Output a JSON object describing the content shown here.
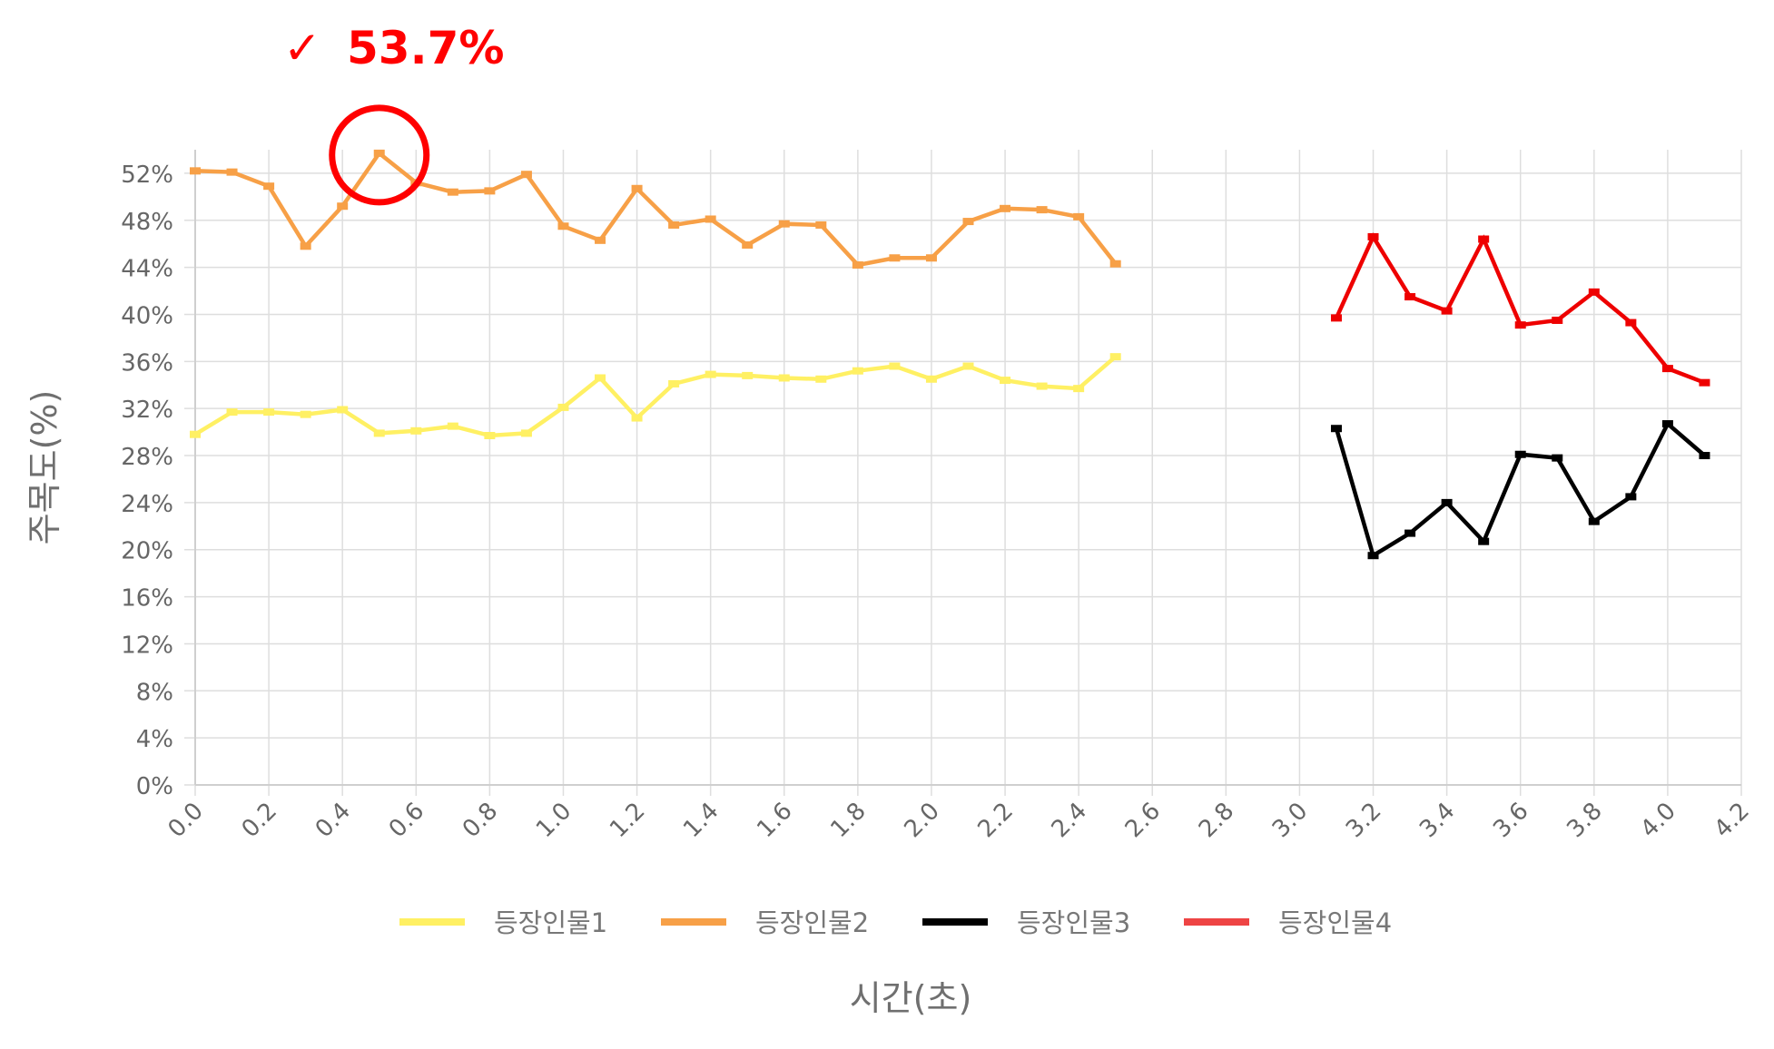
{
  "chart_data": {
    "type": "line",
    "xlabel": "시간(초)",
    "ylabel": "주목도(%)",
    "xlim": [
      0.0,
      4.2
    ],
    "ylim": [
      0,
      54
    ],
    "x_ticks": [
      "0.0",
      "0.2",
      "0.4",
      "0.6",
      "0.8",
      "1.0",
      "1.2",
      "1.4",
      "1.6",
      "1.8",
      "2.0",
      "2.2",
      "2.4",
      "2.6",
      "2.8",
      "3.0",
      "3.2",
      "3.4",
      "3.6",
      "3.8",
      "4.0",
      "4.2"
    ],
    "y_ticks": [
      "0%",
      "4%",
      "8%",
      "12%",
      "16%",
      "20%",
      "24%",
      "28%",
      "32%",
      "36%",
      "40%",
      "44%",
      "48%",
      "52%"
    ],
    "grid": true,
    "legend_position": "bottom",
    "series": [
      {
        "name": "등장인물1",
        "color": "#fff063",
        "x": [
          0.0,
          0.1,
          0.2,
          0.3,
          0.4,
          0.5,
          0.6,
          0.7,
          0.8,
          0.9,
          1.0,
          1.1,
          1.2,
          1.3,
          1.4,
          1.5,
          1.6,
          1.7,
          1.8,
          1.9,
          2.0,
          2.1,
          2.2,
          2.3,
          2.4,
          2.5
        ],
        "values": [
          29.8,
          31.7,
          31.7,
          31.5,
          31.9,
          29.9,
          30.1,
          30.5,
          29.7,
          29.9,
          32.1,
          34.6,
          31.2,
          34.1,
          34.9,
          34.8,
          34.6,
          34.5,
          35.2,
          35.6,
          34.5,
          35.6,
          34.4,
          33.9,
          33.7,
          36.4
        ]
      },
      {
        "name": "등장인물2",
        "color": "#f7a047",
        "x": [
          0.0,
          0.1,
          0.2,
          0.3,
          0.4,
          0.5,
          0.6,
          0.7,
          0.8,
          0.9,
          1.0,
          1.1,
          1.2,
          1.3,
          1.4,
          1.5,
          1.6,
          1.7,
          1.8,
          1.9,
          2.0,
          2.1,
          2.2,
          2.3,
          2.4,
          2.5
        ],
        "values": [
          52.2,
          52.1,
          50.9,
          45.8,
          49.2,
          53.7,
          51.2,
          50.4,
          50.5,
          51.9,
          47.5,
          46.3,
          50.7,
          47.6,
          48.1,
          45.9,
          47.7,
          47.6,
          44.2,
          44.8,
          44.8,
          47.9,
          49.0,
          48.9,
          48.3,
          44.3
        ]
      },
      {
        "name": "등장인물3",
        "color": "#000000",
        "x": [
          3.1,
          3.2,
          3.3,
          3.4,
          3.5,
          3.6,
          3.7,
          3.8,
          3.9,
          4.0,
          4.1
        ],
        "values": [
          30.3,
          19.5,
          21.4,
          24.0,
          20.7,
          28.1,
          27.8,
          22.4,
          24.5,
          30.7,
          28.0
        ]
      },
      {
        "name": "등장인물4",
        "color": "#ee0000",
        "legend_color": "#ee4444",
        "x": [
          3.1,
          3.2,
          3.3,
          3.4,
          3.5,
          3.6,
          3.7,
          3.8,
          3.9,
          4.0,
          4.1
        ],
        "values": [
          39.7,
          46.6,
          41.5,
          40.3,
          46.4,
          39.1,
          39.5,
          41.9,
          39.3,
          35.4,
          34.2
        ]
      }
    ],
    "annotation": {
      "text": "53.7%",
      "mark": "✓",
      "color": "#ff0000",
      "target_series": "등장인물2",
      "target_x": 0.5,
      "target_y": 53.7
    }
  }
}
